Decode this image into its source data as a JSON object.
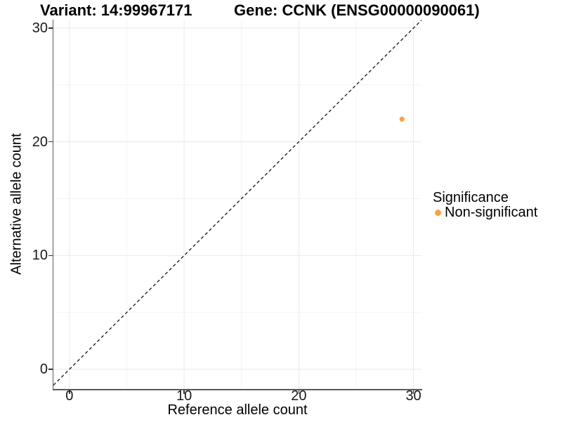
{
  "chart_data": {
    "type": "scatter",
    "title_left": "Variant: 14:99967171",
    "title_right": "Gene: CCNK (ENSG00000090061)",
    "xlabel": "Reference allele count",
    "ylabel": "Alternative allele count",
    "xticks": [
      0,
      10,
      20,
      30
    ],
    "yticks": [
      0,
      10,
      20,
      30
    ],
    "minor_xticks": [
      5,
      15,
      25
    ],
    "minor_yticks": [
      5,
      15,
      25
    ],
    "xlim": [
      -1.4,
      30.7
    ],
    "ylim": [
      -1.73,
      30.74
    ],
    "data_range": [
      0,
      30
    ],
    "grid": true,
    "reference_line": {
      "type": "identity",
      "equation": "y = x",
      "style": "dashed",
      "color": "#141414"
    },
    "legend": {
      "title": "Significance",
      "position": "right"
    },
    "series": [
      {
        "name": "Non-significant",
        "color": "#F9A242",
        "points": [
          [
            29,
            22
          ]
        ]
      }
    ]
  },
  "style": {
    "background": "#FFFFFF",
    "axis_line_color": "#595959",
    "tick_color": "#333333",
    "text_color": "#1A1A1A",
    "grid_major_color": "#E8E8E8",
    "grid_minor_color": "#F4F4F4"
  }
}
